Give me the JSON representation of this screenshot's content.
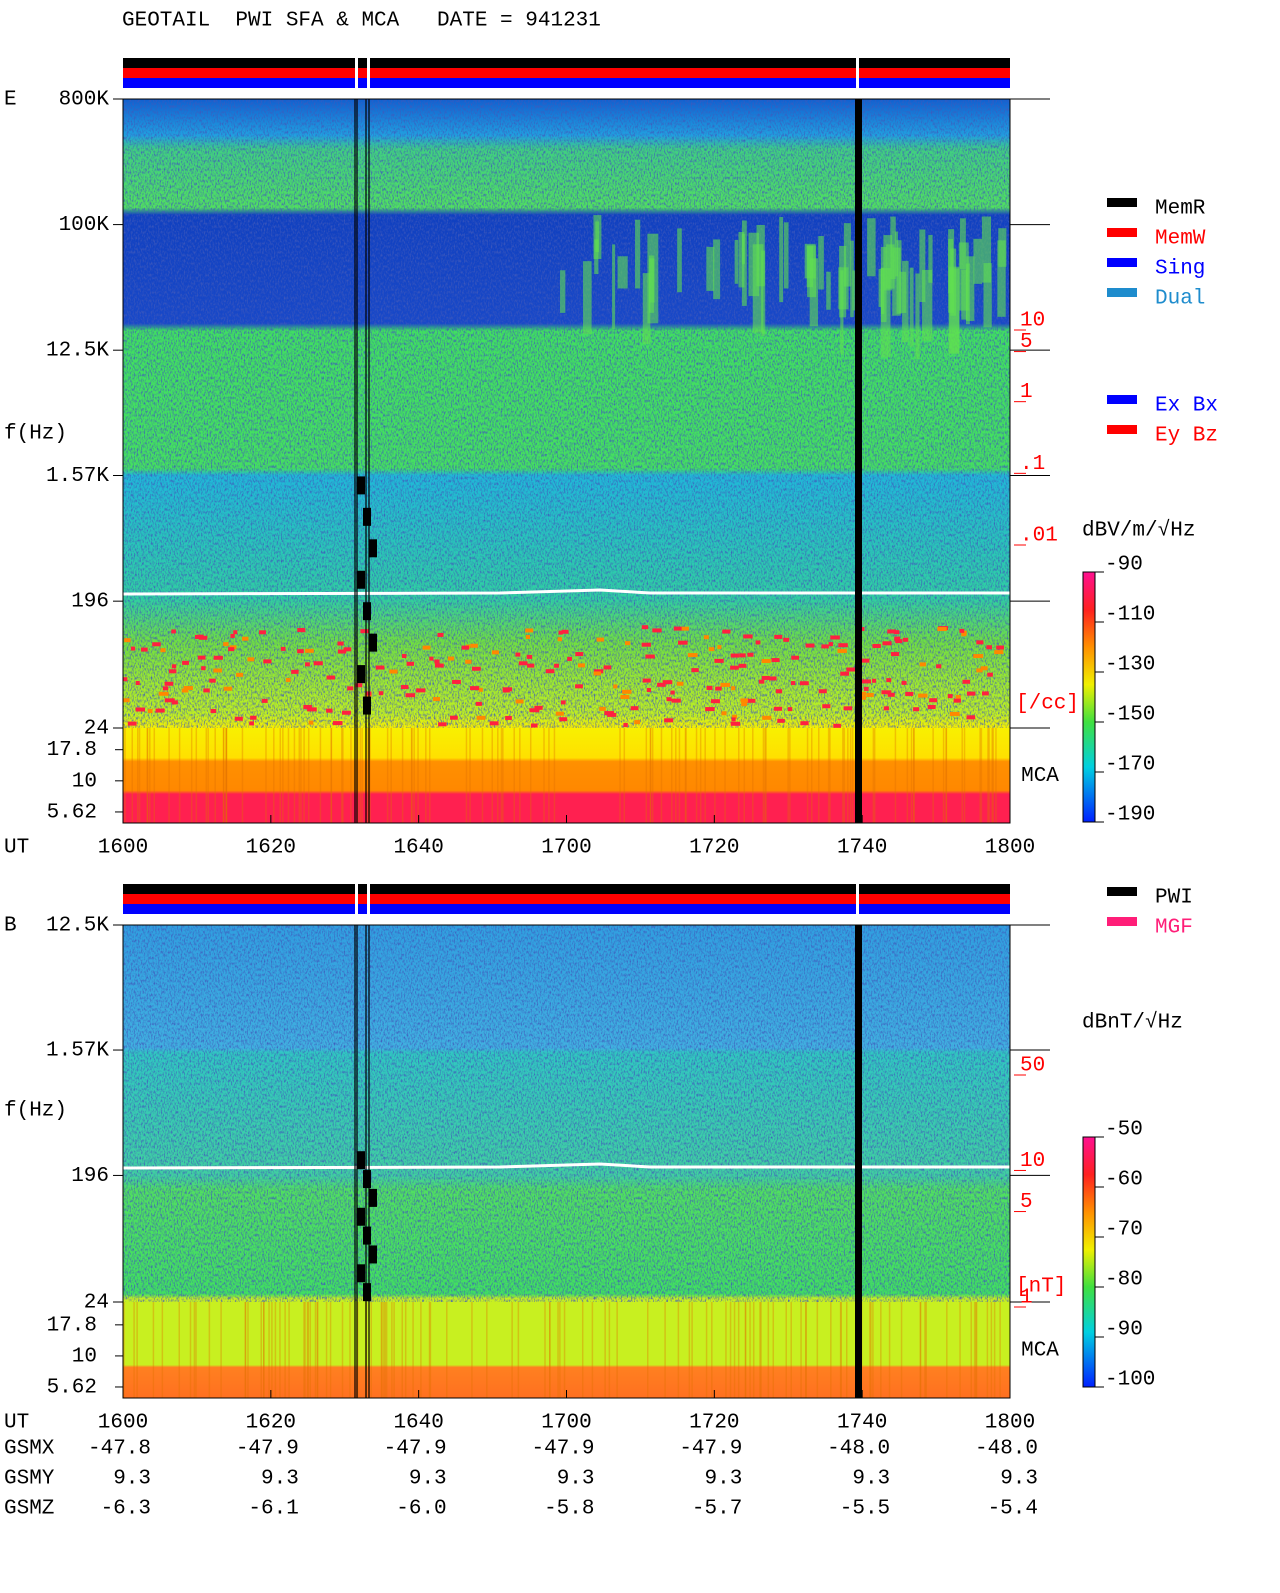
{
  "header": {
    "title": "GEOTAIL  PWI SFA & MCA   DATE = 941231"
  },
  "chart_data": [
    {
      "type": "spectrogram",
      "label": "E",
      "y_label": "f(Hz)",
      "x_label": "UT",
      "yscale": "log",
      "ylim": [
        24,
        800000
      ],
      "yticks": [
        {
          "value": 800000,
          "label": "800K"
        },
        {
          "value": 100000,
          "label": "100K"
        },
        {
          "value": 12500,
          "label": "12.5K"
        },
        {
          "value": 1570,
          "label": "1.57K"
        },
        196,
        24
      ],
      "mca_label": "MCA",
      "mca_ylim": [
        4.58,
        26.6
      ],
      "mca_yticks": [
        17.8,
        10,
        5.62
      ],
      "xticks": [
        "1600",
        "1620",
        "1640",
        "1700",
        "1720",
        "1740",
        "1800"
      ],
      "colorbar": {
        "unit": "dBV/m/√Hz",
        "lim": [
          -190,
          -90
        ],
        "ticks": [
          -90,
          -110,
          -130,
          -150,
          -170,
          -190
        ]
      },
      "density_axis": {
        "unit": "[/cc]",
        "scale": "log",
        "lim": [
          0.01,
          10
        ],
        "color": "#ff0000",
        "ticks": [
          10,
          5,
          1,
          {
            "value": 0.1,
            "label": ".1"
          },
          {
            "value": 0.01,
            "label": ".01"
          }
        ]
      }
    },
    {
      "type": "spectrogram",
      "label": "B",
      "y_label": "f(Hz)",
      "x_label": "UT",
      "yscale": "log",
      "ylim": [
        24,
        12500
      ],
      "yticks": [
        {
          "value": 12500,
          "label": "12.5K"
        },
        {
          "value": 1570,
          "label": "1.57K"
        },
        196,
        24
      ],
      "mca_label": "MCA",
      "mca_ylim": [
        4.58,
        27.2
      ],
      "mca_yticks": [
        17.8,
        10,
        5.62
      ],
      "xticks": [
        "1600",
        "1620",
        "1640",
        "1700",
        "1720",
        "1740",
        "1800"
      ],
      "colorbar": {
        "unit": "dBnT/√Hz",
        "lim": [
          -100,
          -50
        ],
        "ticks": [
          -50,
          -60,
          -70,
          -80,
          -90,
          -100
        ]
      },
      "density_axis": {
        "unit": "[nT]",
        "scale": "log",
        "lim": [
          1,
          50
        ],
        "color": "#ff0000",
        "ticks": [
          50,
          10,
          5,
          1
        ]
      }
    }
  ],
  "legends": [
    {
      "items": [
        {
          "name": "MemR",
          "color": "#000000"
        },
        {
          "name": "MemW",
          "color": "#ff0000"
        },
        {
          "name": "Sing",
          "color": "#0000ff"
        },
        {
          "name": "Dual",
          "color": "#1e8ccd"
        }
      ]
    },
    {
      "items": [
        {
          "name": "Ex Bx",
          "color": "#0000ff"
        },
        {
          "name": "Ey Bz",
          "color": "#ff0000"
        }
      ]
    },
    {
      "items": [
        {
          "name": "PWI",
          "color": "#000000"
        },
        {
          "name": "MGF",
          "color": "#ff1e78"
        }
      ]
    }
  ],
  "orbit": {
    "rows": [
      {
        "label": "GSMX",
        "values": [
          "-47.8",
          "-47.9",
          "-47.9",
          "-47.9",
          "-47.9",
          "-48.0",
          "-48.0"
        ]
      },
      {
        "label": "GSMY",
        "values": [
          "9.3",
          "9.3",
          "9.3",
          "9.3",
          "9.3",
          "9.3",
          "9.3"
        ]
      },
      {
        "label": "GSMZ",
        "values": [
          "-6.3",
          "-6.1",
          "-6.0",
          "-5.8",
          "-5.7",
          "-5.5",
          "-5.4"
        ]
      }
    ]
  }
}
